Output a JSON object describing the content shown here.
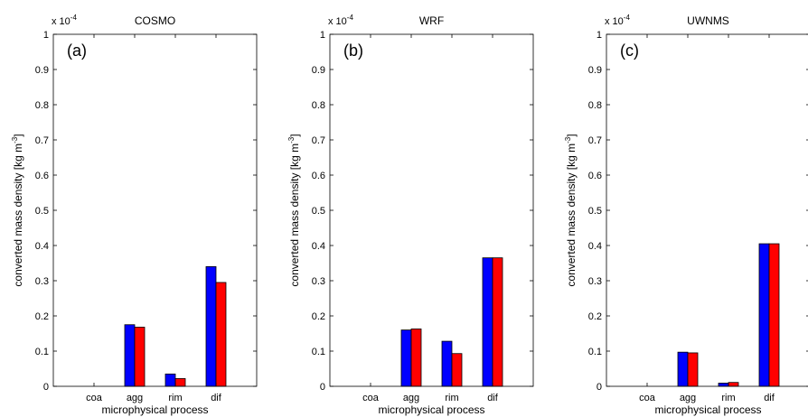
{
  "chart_data": [
    {
      "type": "bar",
      "title": "COSMO",
      "panel_label": "(a)",
      "scale_label": "x 10",
      "scale_exp": "-4",
      "xlabel": "microphysical process",
      "ylabel_main": "converted mass density [kg m",
      "ylabel_sup": "-3",
      "ylabel_end": "]",
      "categories": [
        "coa",
        "agg",
        "rim",
        "dif"
      ],
      "series": [
        {
          "color": "#0000ff",
          "values": [
            0.0,
            0.175,
            0.035,
            0.34
          ]
        },
        {
          "color": "#ff0000",
          "values": [
            0.0,
            0.168,
            0.022,
            0.295
          ]
        }
      ],
      "ylim": [
        0,
        1
      ],
      "yticks": [
        "0",
        "0.1",
        "0.2",
        "0.3",
        "0.4",
        "0.5",
        "0.6",
        "0.7",
        "0.8",
        "0.9",
        "1"
      ]
    },
    {
      "type": "bar",
      "title": "WRF",
      "panel_label": "(b)",
      "scale_label": "x 10",
      "scale_exp": "-4",
      "xlabel": "microphysical process",
      "ylabel_main": "converted mass density [kg m",
      "ylabel_sup": "-3",
      "ylabel_end": "]",
      "categories": [
        "coa",
        "agg",
        "rim",
        "dif"
      ],
      "series": [
        {
          "color": "#0000ff",
          "values": [
            0.0,
            0.16,
            0.128,
            0.365
          ]
        },
        {
          "color": "#ff0000",
          "values": [
            0.0,
            0.163,
            0.093,
            0.365
          ]
        }
      ],
      "ylim": [
        0,
        1
      ],
      "yticks": [
        "0",
        "0.1",
        "0.2",
        "0.3",
        "0.4",
        "0.5",
        "0.6",
        "0.7",
        "0.8",
        "0.9",
        "1"
      ]
    },
    {
      "type": "bar",
      "title": "UWNMS",
      "panel_label": "(c)",
      "scale_label": "x 10",
      "scale_exp": "-4",
      "xlabel": "microphysical process",
      "ylabel_main": "converted mass density [kg m",
      "ylabel_sup": "-3",
      "ylabel_end": "]",
      "categories": [
        "coa",
        "agg",
        "rim",
        "dif"
      ],
      "series": [
        {
          "color": "#0000ff",
          "values": [
            0.0,
            0.097,
            0.009,
            0.405
          ]
        },
        {
          "color": "#ff0000",
          "values": [
            0.0,
            0.095,
            0.011,
            0.405
          ]
        }
      ],
      "ylim": [
        0,
        1
      ],
      "yticks": [
        "0",
        "0.1",
        "0.2",
        "0.3",
        "0.4",
        "0.5",
        "0.6",
        "0.7",
        "0.8",
        "0.9",
        "1"
      ]
    }
  ]
}
